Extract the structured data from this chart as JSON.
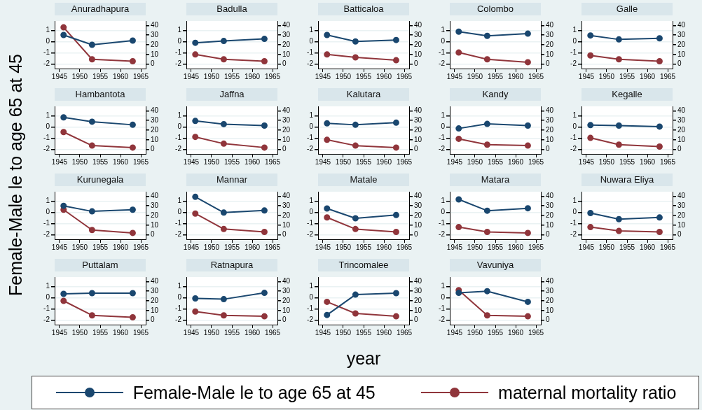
{
  "chart_data": [
    {
      "type": "line",
      "title": "Anuradhapura",
      "ylabel": "Female-Male le to age 65 at 45",
      "legend": "bottom",
      "grid": "y",
      "marker": "circle",
      "x": [
        1946,
        1953,
        1963
      ],
      "xlim": [
        1943.8,
        1966.2
      ],
      "xticks": [
        1945,
        1950,
        1955,
        1960,
        1965
      ],
      "ylim": [
        -2.42,
        1.86
      ],
      "yticks": [
        -2,
        -1,
        0,
        1
      ],
      "y2lim": [
        -4.6,
        44.6
      ],
      "y2ticks": [
        0,
        10,
        20,
        30,
        40
      ],
      "series": [
        {
          "name": "Female-Male le to age 65 at 45",
          "color": "#1a476f",
          "values": [
            0.6,
            -0.28,
            0.1
          ]
        },
        {
          "name": "maternal mortality ratio",
          "color": "#90353b",
          "axis": "y2",
          "values": [
            38,
            5,
            3
          ]
        }
      ]
    },
    {
      "type": "line",
      "title": "Badulla",
      "grid": "y",
      "marker": "circle",
      "x": [
        1946,
        1953,
        1963
      ],
      "xlim": [
        1943.8,
        1966.2
      ],
      "xticks": [
        1945,
        1950,
        1955,
        1960,
        1965
      ],
      "ylim": [
        -2.42,
        1.86
      ],
      "yticks": [
        -2,
        -1,
        0,
        1
      ],
      "y2lim": [
        -4.6,
        44.6
      ],
      "y2ticks": [
        0,
        10,
        20,
        30,
        40
      ],
      "series": [
        {
          "color": "#1a476f",
          "values": [
            -0.1,
            0.06,
            0.25
          ]
        },
        {
          "color": "#90353b",
          "axis": "y2",
          "values": [
            10,
            5,
            3
          ]
        }
      ]
    },
    {
      "type": "line",
      "title": "Batticaloa",
      "grid": "y",
      "marker": "circle",
      "x": [
        1946,
        1953,
        1963
      ],
      "xlim": [
        1943.8,
        1966.2
      ],
      "xticks": [
        1945,
        1950,
        1955,
        1960,
        1965
      ],
      "ylim": [
        -2.42,
        1.86
      ],
      "yticks": [
        -2,
        -1,
        0,
        1
      ],
      "y2lim": [
        -4.6,
        44.6
      ],
      "y2ticks": [
        0,
        10,
        20,
        30,
        40
      ],
      "series": [
        {
          "color": "#1a476f",
          "values": [
            0.6,
            0.02,
            0.15
          ]
        },
        {
          "color": "#90353b",
          "axis": "y2",
          "values": [
            10,
            7,
            4
          ]
        }
      ]
    },
    {
      "type": "line",
      "title": "Colombo",
      "grid": "y",
      "marker": "circle",
      "x": [
        1946,
        1953,
        1963
      ],
      "xlim": [
        1943.8,
        1966.2
      ],
      "xticks": [
        1945,
        1950,
        1955,
        1960,
        1965
      ],
      "ylim": [
        -2.42,
        1.86
      ],
      "yticks": [
        -2,
        -1,
        0,
        1
      ],
      "y2lim": [
        -4.6,
        44.6
      ],
      "y2ticks": [
        0,
        10,
        20,
        30,
        40
      ],
      "series": [
        {
          "color": "#1a476f",
          "values": [
            0.9,
            0.52,
            0.72
          ]
        },
        {
          "color": "#90353b",
          "axis": "y2",
          "values": [
            12,
            5,
            2
          ]
        }
      ]
    },
    {
      "type": "line",
      "title": "Galle",
      "grid": "y",
      "marker": "circle",
      "x": [
        1946,
        1953,
        1963
      ],
      "xlim": [
        1943.8,
        1966.2
      ],
      "xticks": [
        1945,
        1950,
        1955,
        1960,
        1965
      ],
      "ylim": [
        -2.42,
        1.86
      ],
      "yticks": [
        -2,
        -1,
        0,
        1
      ],
      "y2lim": [
        -4.6,
        44.6
      ],
      "y2ticks": [
        0,
        10,
        20,
        30,
        40
      ],
      "series": [
        {
          "color": "#1a476f",
          "values": [
            0.56,
            0.2,
            0.3
          ]
        },
        {
          "color": "#90353b",
          "axis": "y2",
          "values": [
            9,
            5,
            3
          ]
        }
      ]
    },
    {
      "type": "line",
      "title": "Hambantota",
      "grid": "y",
      "marker": "circle",
      "x": [
        1946,
        1953,
        1963
      ],
      "xlim": [
        1943.8,
        1966.2
      ],
      "xticks": [
        1945,
        1950,
        1955,
        1960,
        1965
      ],
      "ylim": [
        -2.42,
        1.86
      ],
      "yticks": [
        -2,
        -1,
        0,
        1
      ],
      "y2lim": [
        -4.6,
        44.6
      ],
      "y2ticks": [
        0,
        10,
        20,
        30,
        40
      ],
      "series": [
        {
          "color": "#1a476f",
          "values": [
            0.87,
            0.48,
            0.2
          ]
        },
        {
          "color": "#90353b",
          "axis": "y2",
          "values": [
            18,
            4,
            2
          ]
        }
      ]
    },
    {
      "type": "line",
      "title": "Jaffna",
      "grid": "y",
      "marker": "circle",
      "x": [
        1946,
        1953,
        1963
      ],
      "xlim": [
        1943.8,
        1966.2
      ],
      "xticks": [
        1945,
        1950,
        1955,
        1960,
        1965
      ],
      "ylim": [
        -2.42,
        1.86
      ],
      "yticks": [
        -2,
        -1,
        0,
        1
      ],
      "y2lim": [
        -4.6,
        44.6
      ],
      "y2ticks": [
        0,
        10,
        20,
        30,
        40
      ],
      "series": [
        {
          "color": "#1a476f",
          "values": [
            0.55,
            0.26,
            0.13
          ]
        },
        {
          "color": "#90353b",
          "axis": "y2",
          "values": [
            13,
            6,
            2
          ]
        }
      ]
    },
    {
      "type": "line",
      "title": "Kalutara",
      "grid": "y",
      "marker": "circle",
      "x": [
        1946,
        1953,
        1963
      ],
      "xlim": [
        1943.8,
        1966.2
      ],
      "xticks": [
        1945,
        1950,
        1955,
        1960,
        1965
      ],
      "ylim": [
        -2.42,
        1.86
      ],
      "yticks": [
        -2,
        -1,
        0,
        1
      ],
      "y2lim": [
        -4.6,
        44.6
      ],
      "y2ticks": [
        0,
        10,
        20,
        30,
        40
      ],
      "series": [
        {
          "color": "#1a476f",
          "values": [
            0.33,
            0.2,
            0.39
          ]
        },
        {
          "color": "#90353b",
          "axis": "y2",
          "values": [
            10,
            4,
            2
          ]
        }
      ]
    },
    {
      "type": "line",
      "title": "Kandy",
      "grid": "y",
      "marker": "circle",
      "x": [
        1946,
        1953,
        1963
      ],
      "xlim": [
        1943.8,
        1966.2
      ],
      "xticks": [
        1945,
        1950,
        1955,
        1960,
        1965
      ],
      "ylim": [
        -2.42,
        1.86
      ],
      "yticks": [
        -2,
        -1,
        0,
        1
      ],
      "y2lim": [
        -4.6,
        44.6
      ],
      "y2ticks": [
        0,
        10,
        20,
        30,
        40
      ],
      "series": [
        {
          "color": "#1a476f",
          "values": [
            -0.13,
            0.28,
            0.13
          ]
        },
        {
          "color": "#90353b",
          "axis": "y2",
          "values": [
            11,
            5,
            4
          ]
        }
      ]
    },
    {
      "type": "line",
      "title": "Kegalle",
      "grid": "y",
      "marker": "circle",
      "x": [
        1946,
        1953,
        1963
      ],
      "xlim": [
        1943.8,
        1966.2
      ],
      "xticks": [
        1945,
        1950,
        1955,
        1960,
        1965
      ],
      "ylim": [
        -2.42,
        1.86
      ],
      "yticks": [
        -2,
        -1,
        0,
        1
      ],
      "y2lim": [
        -4.6,
        44.6
      ],
      "y2ticks": [
        0,
        10,
        20,
        30,
        40
      ],
      "series": [
        {
          "color": "#1a476f",
          "values": [
            0.17,
            0.13,
            0.04
          ]
        },
        {
          "color": "#90353b",
          "axis": "y2",
          "values": [
            12,
            5,
            3
          ]
        }
      ]
    },
    {
      "type": "line",
      "title": "Kurunegala",
      "grid": "y",
      "marker": "circle",
      "x": [
        1946,
        1953,
        1963
      ],
      "xlim": [
        1943.8,
        1966.2
      ],
      "xticks": [
        1945,
        1950,
        1955,
        1960,
        1965
      ],
      "ylim": [
        -2.42,
        1.86
      ],
      "yticks": [
        -2,
        -1,
        0,
        1
      ],
      "y2lim": [
        -4.6,
        44.6
      ],
      "y2ticks": [
        0,
        10,
        20,
        30,
        40
      ],
      "series": [
        {
          "color": "#1a476f",
          "values": [
            0.59,
            0.09,
            0.24
          ]
        },
        {
          "color": "#90353b",
          "axis": "y2",
          "values": [
            26,
            5,
            2
          ]
        }
      ]
    },
    {
      "type": "line",
      "title": "Mannar",
      "grid": "y",
      "marker": "circle",
      "x": [
        1946,
        1953,
        1963
      ],
      "xlim": [
        1943.8,
        1966.2
      ],
      "xticks": [
        1945,
        1950,
        1955,
        1960,
        1965
      ],
      "ylim": [
        -2.42,
        1.86
      ],
      "yticks": [
        -2,
        -1,
        0,
        1
      ],
      "y2lim": [
        -4.6,
        44.6
      ],
      "y2ticks": [
        0,
        10,
        20,
        30,
        40
      ],
      "series": [
        {
          "color": "#1a476f",
          "values": [
            1.4,
            -0.02,
            0.17
          ]
        },
        {
          "color": "#90353b",
          "axis": "y2",
          "values": [
            22,
            6,
            3
          ]
        }
      ]
    },
    {
      "type": "line",
      "title": "Matale",
      "grid": "y",
      "marker": "circle",
      "x": [
        1946,
        1953,
        1963
      ],
      "xlim": [
        1943.8,
        1966.2
      ],
      "xticks": [
        1945,
        1950,
        1955,
        1960,
        1965
      ],
      "ylim": [
        -2.42,
        1.86
      ],
      "yticks": [
        -2,
        -1,
        0,
        1
      ],
      "y2lim": [
        -4.6,
        44.6
      ],
      "y2ticks": [
        0,
        10,
        20,
        30,
        40
      ],
      "series": [
        {
          "color": "#1a476f",
          "values": [
            0.35,
            -0.53,
            -0.24
          ]
        },
        {
          "color": "#90353b",
          "axis": "y2",
          "values": [
            18,
            6,
            3
          ]
        }
      ]
    },
    {
      "type": "line",
      "title": "Matara",
      "grid": "y",
      "marker": "circle",
      "x": [
        1946,
        1953,
        1963
      ],
      "xlim": [
        1943.8,
        1966.2
      ],
      "xticks": [
        1945,
        1950,
        1955,
        1960,
        1965
      ],
      "ylim": [
        -2.42,
        1.86
      ],
      "yticks": [
        -2,
        -1,
        0,
        1
      ],
      "y2lim": [
        -4.6,
        44.6
      ],
      "y2ticks": [
        0,
        10,
        20,
        30,
        40
      ],
      "series": [
        {
          "color": "#1a476f",
          "values": [
            1.17,
            0.15,
            0.37
          ]
        },
        {
          "color": "#90353b",
          "axis": "y2",
          "values": [
            8,
            3,
            2
          ]
        }
      ]
    },
    {
      "type": "line",
      "title": "Nuwara Eliya",
      "grid": "y",
      "marker": "circle",
      "x": [
        1946,
        1953,
        1963
      ],
      "xlim": [
        1943.8,
        1966.2
      ],
      "xticks": [
        1945,
        1950,
        1955,
        1960,
        1965
      ],
      "ylim": [
        -2.42,
        1.86
      ],
      "yticks": [
        -2,
        -1,
        0,
        1
      ],
      "y2lim": [
        -4.6,
        44.6
      ],
      "y2ticks": [
        0,
        10,
        20,
        30,
        40
      ],
      "series": [
        {
          "color": "#1a476f",
          "values": [
            -0.06,
            -0.61,
            -0.46
          ]
        },
        {
          "color": "#90353b",
          "axis": "y2",
          "values": [
            8,
            4,
            3
          ]
        }
      ]
    },
    {
      "type": "line",
      "title": "Puttalam",
      "grid": "y",
      "marker": "circle",
      "x": [
        1946,
        1953,
        1963
      ],
      "xlim": [
        1943.8,
        1966.2
      ],
      "xticks": [
        1945,
        1950,
        1955,
        1960,
        1965
      ],
      "ylim": [
        -2.42,
        1.86
      ],
      "yticks": [
        -2,
        -1,
        0,
        1
      ],
      "y2lim": [
        -4.6,
        44.6
      ],
      "y2ticks": [
        0,
        10,
        20,
        30,
        40
      ],
      "series": [
        {
          "color": "#1a476f",
          "values": [
            0.35,
            0.41,
            0.41
          ]
        },
        {
          "color": "#90353b",
          "axis": "y2",
          "values": [
            20,
            5,
            3
          ]
        }
      ]
    },
    {
      "type": "line",
      "title": "Ratnapura",
      "grid": "y",
      "marker": "circle",
      "x": [
        1946,
        1953,
        1963
      ],
      "xlim": [
        1943.8,
        1966.2
      ],
      "xticks": [
        1945,
        1950,
        1955,
        1960,
        1965
      ],
      "ylim": [
        -2.42,
        1.86
      ],
      "yticks": [
        -2,
        -1,
        0,
        1
      ],
      "y2lim": [
        -4.6,
        44.6
      ],
      "y2ticks": [
        0,
        10,
        20,
        30,
        40
      ],
      "series": [
        {
          "color": "#1a476f",
          "values": [
            -0.06,
            -0.13,
            0.44
          ]
        },
        {
          "color": "#90353b",
          "axis": "y2",
          "values": [
            9,
            5,
            4
          ]
        }
      ]
    },
    {
      "type": "line",
      "title": "Trincomalee",
      "xlabel": "year",
      "grid": "y",
      "marker": "circle",
      "x": [
        1946,
        1953,
        1963
      ],
      "xlim": [
        1943.8,
        1966.2
      ],
      "xticks": [
        1945,
        1950,
        1955,
        1960,
        1965
      ],
      "ylim": [
        -2.42,
        1.86
      ],
      "yticks": [
        -2,
        -1,
        0,
        1
      ],
      "y2lim": [
        -4.6,
        44.6
      ],
      "y2ticks": [
        0,
        10,
        20,
        30,
        40
      ],
      "series": [
        {
          "color": "#1a476f",
          "values": [
            -1.55,
            0.28,
            0.41
          ]
        },
        {
          "color": "#90353b",
          "axis": "y2",
          "values": [
            19,
            7,
            4
          ]
        }
      ]
    },
    {
      "type": "line",
      "title": "Vavuniya",
      "grid": "y",
      "marker": "circle",
      "x": [
        1946,
        1953,
        1963
      ],
      "xlim": [
        1943.8,
        1966.2
      ],
      "xticks": [
        1945,
        1950,
        1955,
        1960,
        1965
      ],
      "ylim": [
        -2.42,
        1.86
      ],
      "yticks": [
        -2,
        -1,
        0,
        1
      ],
      "y2lim": [
        -4.6,
        44.6
      ],
      "y2ticks": [
        0,
        10,
        20,
        30,
        40
      ],
      "series": [
        {
          "color": "#1a476f",
          "values": [
            0.44,
            0.59,
            -0.37
          ]
        },
        {
          "color": "#90353b",
          "axis": "y2",
          "values": [
            31,
            5,
            4
          ]
        }
      ]
    }
  ]
}
